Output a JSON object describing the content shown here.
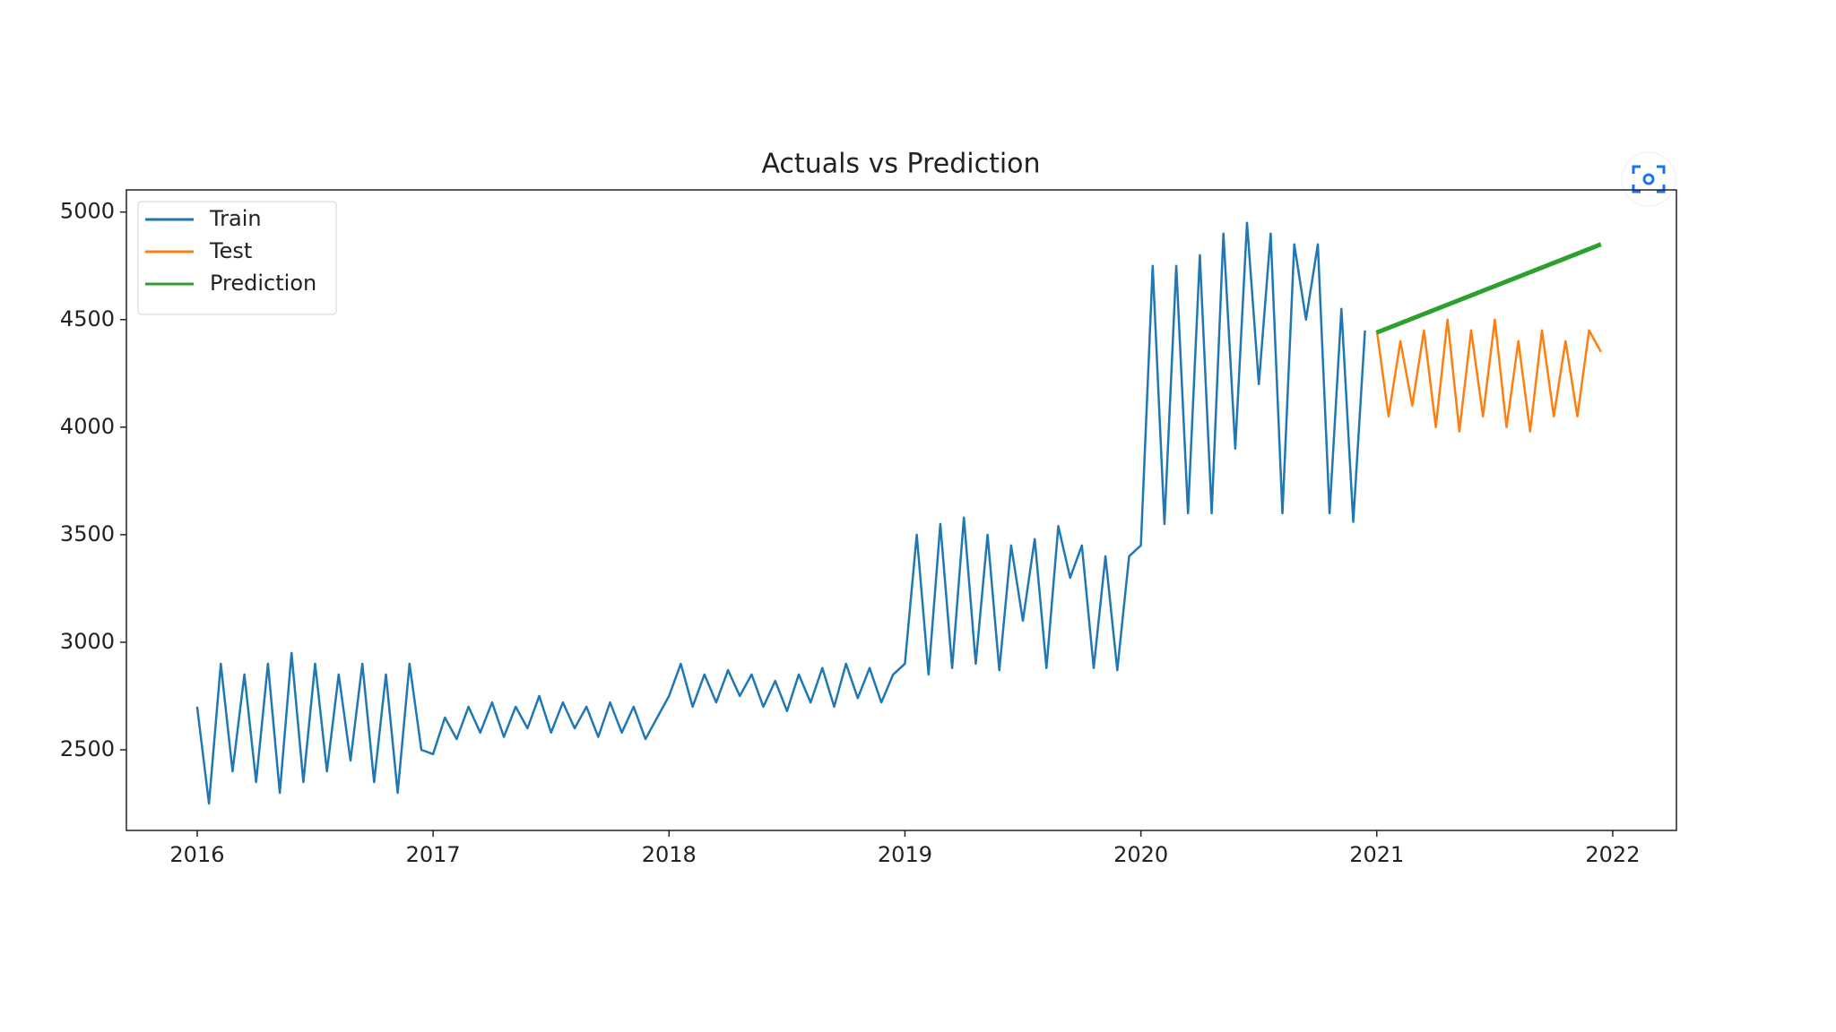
{
  "chart_data": {
    "type": "line",
    "title": "Actuals vs Prediction",
    "xlim": [
      2015.7,
      2022.27
    ],
    "xticks": [
      2016,
      2017,
      2018,
      2019,
      2020,
      2021,
      2022
    ],
    "ylim": [
      2125,
      5103
    ],
    "yticks": [
      2500,
      3000,
      3500,
      4000,
      4500,
      5000
    ],
    "legend": "upper left",
    "grid": false,
    "series": [
      {
        "name": "Train",
        "color": "#1f77b4",
        "x": [
          2016.0,
          2016.05,
          2016.1,
          2016.15,
          2016.2,
          2016.25,
          2016.3,
          2016.35,
          2016.4,
          2016.45,
          2016.5,
          2016.55,
          2016.6,
          2016.65,
          2016.7,
          2016.75,
          2016.8,
          2016.85,
          2016.9,
          2016.95,
          2017.0,
          2017.05,
          2017.1,
          2017.15,
          2017.2,
          2017.25,
          2017.3,
          2017.35,
          2017.4,
          2017.45,
          2017.5,
          2017.55,
          2017.6,
          2017.65,
          2017.7,
          2017.75,
          2017.8,
          2017.85,
          2017.9,
          2017.95,
          2018.0,
          2018.05,
          2018.1,
          2018.15,
          2018.2,
          2018.25,
          2018.3,
          2018.35,
          2018.4,
          2018.45,
          2018.5,
          2018.55,
          2018.6,
          2018.65,
          2018.7,
          2018.75,
          2018.8,
          2018.85,
          2018.9,
          2018.95,
          2019.0,
          2019.05,
          2019.1,
          2019.15,
          2019.2,
          2019.25,
          2019.3,
          2019.35,
          2019.4,
          2019.45,
          2019.5,
          2019.55,
          2019.6,
          2019.65,
          2019.7,
          2019.75,
          2019.8,
          2019.85,
          2019.9,
          2019.95,
          2020.0,
          2020.05,
          2020.1,
          2020.15,
          2020.2,
          2020.25,
          2020.3,
          2020.35,
          2020.4,
          2020.45,
          2020.5,
          2020.55,
          2020.6,
          2020.65,
          2020.7,
          2020.75,
          2020.8,
          2020.85,
          2020.9,
          2020.95
        ],
        "values": [
          2700,
          2250,
          2900,
          2400,
          2850,
          2350,
          2900,
          2300,
          2950,
          2350,
          2900,
          2400,
          2850,
          2450,
          2900,
          2350,
          2850,
          2300,
          2900,
          2500,
          2480,
          2650,
          2550,
          2700,
          2580,
          2720,
          2560,
          2700,
          2600,
          2750,
          2580,
          2720,
          2600,
          2700,
          2560,
          2720,
          2580,
          2700,
          2550,
          2650,
          2750,
          2900,
          2700,
          2850,
          2720,
          2870,
          2750,
          2850,
          2700,
          2820,
          2680,
          2850,
          2720,
          2880,
          2700,
          2900,
          2740,
          2880,
          2720,
          2850,
          2900,
          3500,
          2850,
          3550,
          2880,
          3580,
          2900,
          3500,
          2870,
          3450,
          3100,
          3480,
          2880,
          3540,
          3300,
          3450,
          2880,
          3400,
          2870,
          3400,
          3450,
          4750,
          3550,
          4750,
          3600,
          4800,
          3600,
          4900,
          3900,
          4950,
          4200,
          4900,
          3600,
          4850,
          4500,
          4850,
          3600,
          4550,
          3560,
          4450
        ]
      },
      {
        "name": "Test",
        "color": "#ff7f0e",
        "x": [
          2021.0,
          2021.05,
          2021.1,
          2021.15,
          2021.2,
          2021.25,
          2021.3,
          2021.35,
          2021.4,
          2021.45,
          2021.5,
          2021.55,
          2021.6,
          2021.65,
          2021.7,
          2021.75,
          2021.8,
          2021.85,
          2021.9,
          2021.95
        ],
        "values": [
          4450,
          4050,
          4400,
          4100,
          4450,
          4000,
          4500,
          3980,
          4450,
          4050,
          4500,
          4000,
          4400,
          3980,
          4450,
          4050,
          4400,
          4050,
          4450,
          4350
        ]
      },
      {
        "name": "Prediction",
        "color": "#2ca02c",
        "x": [
          2021.0,
          2021.95
        ],
        "values": [
          4440,
          4850
        ]
      }
    ]
  }
}
